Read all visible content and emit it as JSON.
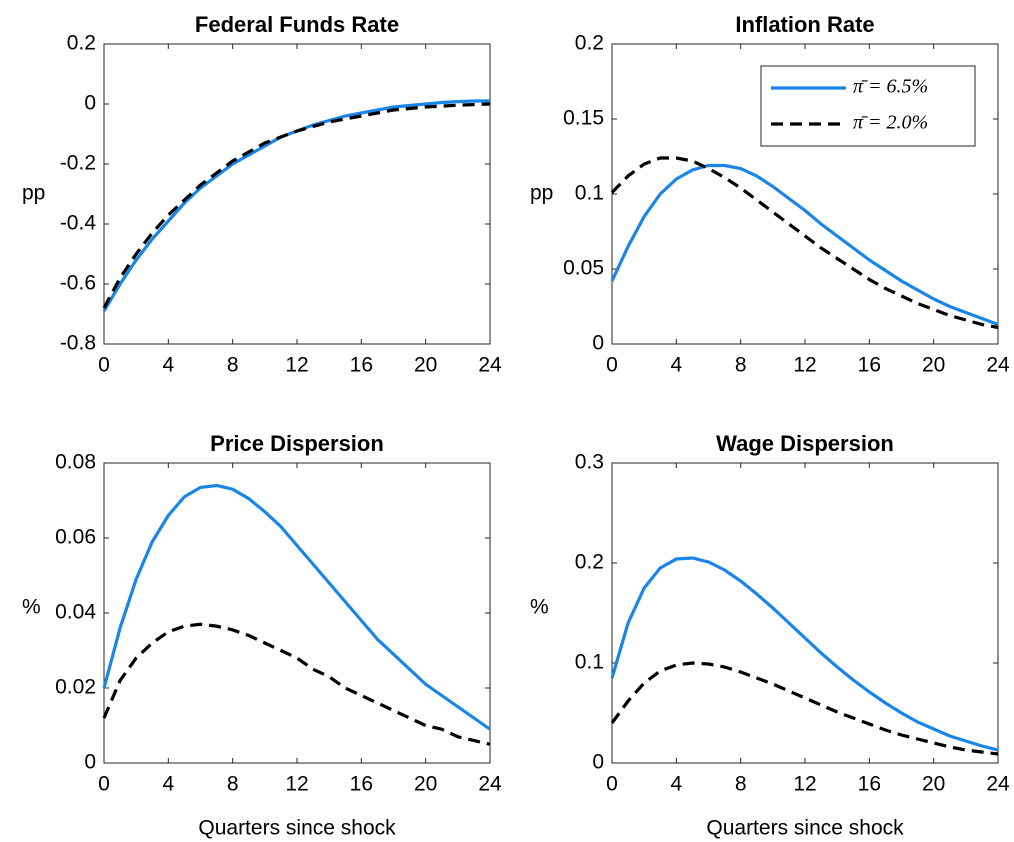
{
  "chart_data": [
    {
      "type": "line",
      "title": "Federal Funds Rate",
      "y_label": "pp",
      "x": [
        0,
        1,
        2,
        3,
        4,
        5,
        6,
        7,
        8,
        9,
        10,
        11,
        12,
        13,
        14,
        15,
        16,
        17,
        18,
        19,
        20,
        21,
        22,
        23,
        24
      ],
      "series": [
        {
          "name": "π̄ = 6.5%",
          "color": "#1a85e8",
          "dash": false,
          "values": [
            -0.69,
            -0.6,
            -0.52,
            -0.45,
            -0.39,
            -0.33,
            -0.28,
            -0.24,
            -0.2,
            -0.17,
            -0.14,
            -0.11,
            -0.09,
            -0.07,
            -0.055,
            -0.04,
            -0.03,
            -0.02,
            -0.01,
            -0.005,
            0.0,
            0.005,
            0.008,
            0.01,
            0.01
          ]
        },
        {
          "name": "π̄ = 2.0%",
          "color": "#000000",
          "dash": true,
          "values": [
            -0.68,
            -0.58,
            -0.5,
            -0.43,
            -0.37,
            -0.32,
            -0.27,
            -0.23,
            -0.19,
            -0.16,
            -0.13,
            -0.11,
            -0.09,
            -0.075,
            -0.06,
            -0.05,
            -0.04,
            -0.03,
            -0.02,
            -0.015,
            -0.01,
            -0.007,
            -0.004,
            -0.002,
            0.0
          ]
        }
      ],
      "xlim": [
        0,
        24
      ],
      "xticks": [
        0,
        4,
        8,
        12,
        16,
        20,
        24
      ],
      "ylim": [
        -0.8,
        0.2
      ],
      "yticks": [
        0.2,
        0,
        -0.2,
        -0.4,
        -0.6,
        -0.8
      ],
      "grid": false,
      "legend": false
    },
    {
      "type": "line",
      "title": "Inflation Rate",
      "y_label": "pp",
      "x": [
        0,
        1,
        2,
        3,
        4,
        5,
        6,
        7,
        8,
        9,
        10,
        11,
        12,
        13,
        14,
        15,
        16,
        17,
        18,
        19,
        20,
        21,
        22,
        23,
        24
      ],
      "series": [
        {
          "name": "π̄ = 6.5%",
          "color": "#1a85e8",
          "dash": false,
          "values": [
            0.042,
            0.065,
            0.085,
            0.1,
            0.11,
            0.116,
            0.119,
            0.119,
            0.117,
            0.112,
            0.105,
            0.097,
            0.089,
            0.08,
            0.072,
            0.064,
            0.056,
            0.049,
            0.042,
            0.036,
            0.03,
            0.025,
            0.021,
            0.017,
            0.013
          ]
        },
        {
          "name": "π̄ = 2.0%",
          "color": "#000000",
          "dash": true,
          "values": [
            0.101,
            0.112,
            0.12,
            0.124,
            0.124,
            0.122,
            0.117,
            0.111,
            0.104,
            0.096,
            0.088,
            0.08,
            0.072,
            0.064,
            0.057,
            0.05,
            0.043,
            0.037,
            0.032,
            0.027,
            0.023,
            0.019,
            0.016,
            0.013,
            0.011
          ]
        }
      ],
      "xlim": [
        0,
        24
      ],
      "xticks": [
        0,
        4,
        8,
        12,
        16,
        20,
        24
      ],
      "ylim": [
        0,
        0.2
      ],
      "yticks": [
        0,
        0.05,
        0.1,
        0.15,
        0.2
      ],
      "grid": false,
      "legend": "northeast"
    },
    {
      "type": "line",
      "title": "Price Dispersion",
      "y_label": "%",
      "x_label": "Quarters since shock",
      "x": [
        0,
        1,
        2,
        3,
        4,
        5,
        6,
        7,
        8,
        9,
        10,
        11,
        12,
        13,
        14,
        15,
        16,
        17,
        18,
        19,
        20,
        21,
        22,
        23,
        24
      ],
      "series": [
        {
          "name": "π̄ = 6.5%",
          "color": "#1a85e8",
          "dash": false,
          "values": [
            0.02,
            0.036,
            0.049,
            0.059,
            0.066,
            0.071,
            0.0735,
            0.074,
            0.073,
            0.0705,
            0.067,
            0.063,
            0.058,
            0.053,
            0.048,
            0.043,
            0.038,
            0.033,
            0.029,
            0.025,
            0.021,
            0.018,
            0.015,
            0.012,
            0.009
          ]
        },
        {
          "name": "π̄ = 2.0%",
          "color": "#000000",
          "dash": true,
          "values": [
            0.012,
            0.022,
            0.028,
            0.032,
            0.035,
            0.0365,
            0.037,
            0.0365,
            0.0355,
            0.034,
            0.032,
            0.03,
            0.028,
            0.025,
            0.023,
            0.02,
            0.018,
            0.016,
            0.014,
            0.012,
            0.01,
            0.009,
            0.007,
            0.006,
            0.005
          ]
        }
      ],
      "xlim": [
        0,
        24
      ],
      "xticks": [
        0,
        4,
        8,
        12,
        16,
        20,
        24
      ],
      "ylim": [
        0,
        0.08
      ],
      "yticks": [
        0,
        0.02,
        0.04,
        0.06,
        0.08
      ],
      "grid": false,
      "legend": false
    },
    {
      "type": "line",
      "title": "Wage Dispersion",
      "y_label": "%",
      "x_label": "Quarters since shock",
      "x": [
        0,
        1,
        2,
        3,
        4,
        5,
        6,
        7,
        8,
        9,
        10,
        11,
        12,
        13,
        14,
        15,
        16,
        17,
        18,
        19,
        20,
        21,
        22,
        23,
        24
      ],
      "series": [
        {
          "name": "π̄ = 6.5%",
          "color": "#1a85e8",
          "dash": false,
          "values": [
            0.085,
            0.14,
            0.175,
            0.195,
            0.204,
            0.205,
            0.201,
            0.193,
            0.182,
            0.169,
            0.155,
            0.14,
            0.125,
            0.11,
            0.096,
            0.083,
            0.071,
            0.06,
            0.05,
            0.041,
            0.034,
            0.027,
            0.022,
            0.017,
            0.013
          ]
        },
        {
          "name": "π̄ = 2.0%",
          "color": "#000000",
          "dash": true,
          "values": [
            0.04,
            0.062,
            0.08,
            0.092,
            0.098,
            0.1,
            0.099,
            0.096,
            0.091,
            0.085,
            0.079,
            0.072,
            0.065,
            0.058,
            0.051,
            0.045,
            0.039,
            0.033,
            0.028,
            0.024,
            0.02,
            0.016,
            0.013,
            0.011,
            0.009
          ]
        }
      ],
      "xlim": [
        0,
        24
      ],
      "xticks": [
        0,
        4,
        8,
        12,
        16,
        20,
        24
      ],
      "ylim": [
        0,
        0.3
      ],
      "yticks": [
        0,
        0.1,
        0.2,
        0.3
      ],
      "grid": false,
      "legend": false
    }
  ]
}
